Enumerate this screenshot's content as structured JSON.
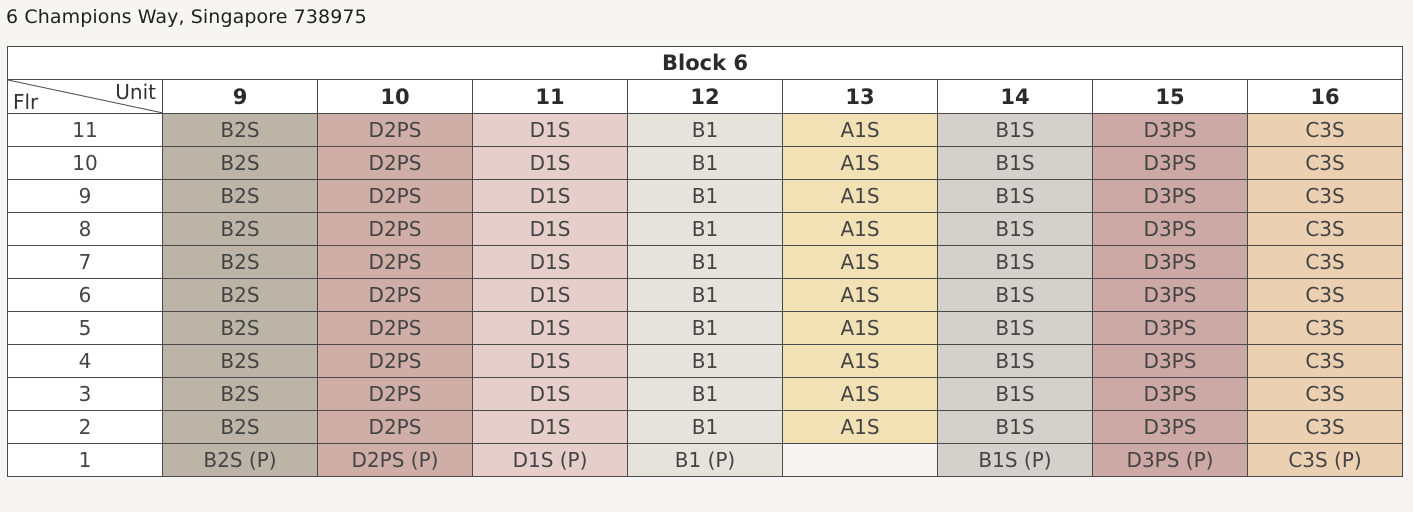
{
  "address": "6 Champions Way, Singapore 738975",
  "block_title": "Block 6",
  "corner": {
    "unit_label": "Unit",
    "floor_label": "Flr"
  },
  "units": [
    {
      "number": "9",
      "type": "B2S",
      "ground": "B2S (P)",
      "color": "#bbb4a7"
    },
    {
      "number": "10",
      "type": "D2PS",
      "ground": "D2PS (P)",
      "color": "#cfaea7"
    },
    {
      "number": "11",
      "type": "D1S",
      "ground": "D1S (P)",
      "color": "#e6cfcb"
    },
    {
      "number": "12",
      "type": "B1",
      "ground": "B1 (P)",
      "color": "#e6e3dd"
    },
    {
      "number": "13",
      "type": "A1S",
      "ground": "",
      "color": "#f1e1b5"
    },
    {
      "number": "14",
      "type": "B1S",
      "ground": "B1S (P)",
      "color": "#d4d0cb"
    },
    {
      "number": "15",
      "type": "D3PS",
      "ground": "D3PS (P)",
      "color": "#cda9a5"
    },
    {
      "number": "16",
      "type": "C3S",
      "ground": "C3S (P)",
      "color": "#ecd0b2"
    }
  ],
  "floors": [
    "11",
    "10",
    "9",
    "8",
    "7",
    "6",
    "5",
    "4",
    "3",
    "2",
    "1"
  ]
}
